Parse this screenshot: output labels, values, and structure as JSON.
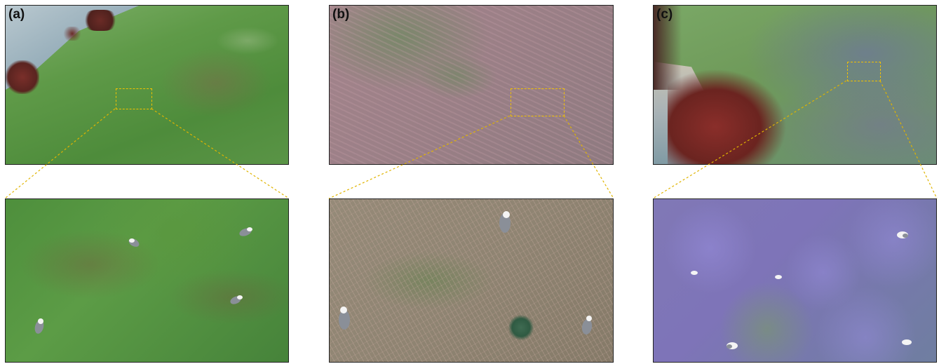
{
  "panels": [
    {
      "label": "(a)",
      "habitat_color": "#5f9a48",
      "zoom_color": "#4e8f3c"
    },
    {
      "label": "(b)",
      "habitat_color": "#9a7f86",
      "zoom_color": "#8f8472"
    },
    {
      "label": "(c)",
      "habitat_color": "#6f9a5a",
      "zoom_color": "#7e74b8"
    }
  ],
  "colors": {
    "zoom_box": "#f2c200",
    "connector": "#e0b400",
    "sea": "#9fb3bf",
    "rock": "#7a2f2a",
    "gull_body": "#f4f4f4",
    "gull_wing": "#8a8f98"
  }
}
